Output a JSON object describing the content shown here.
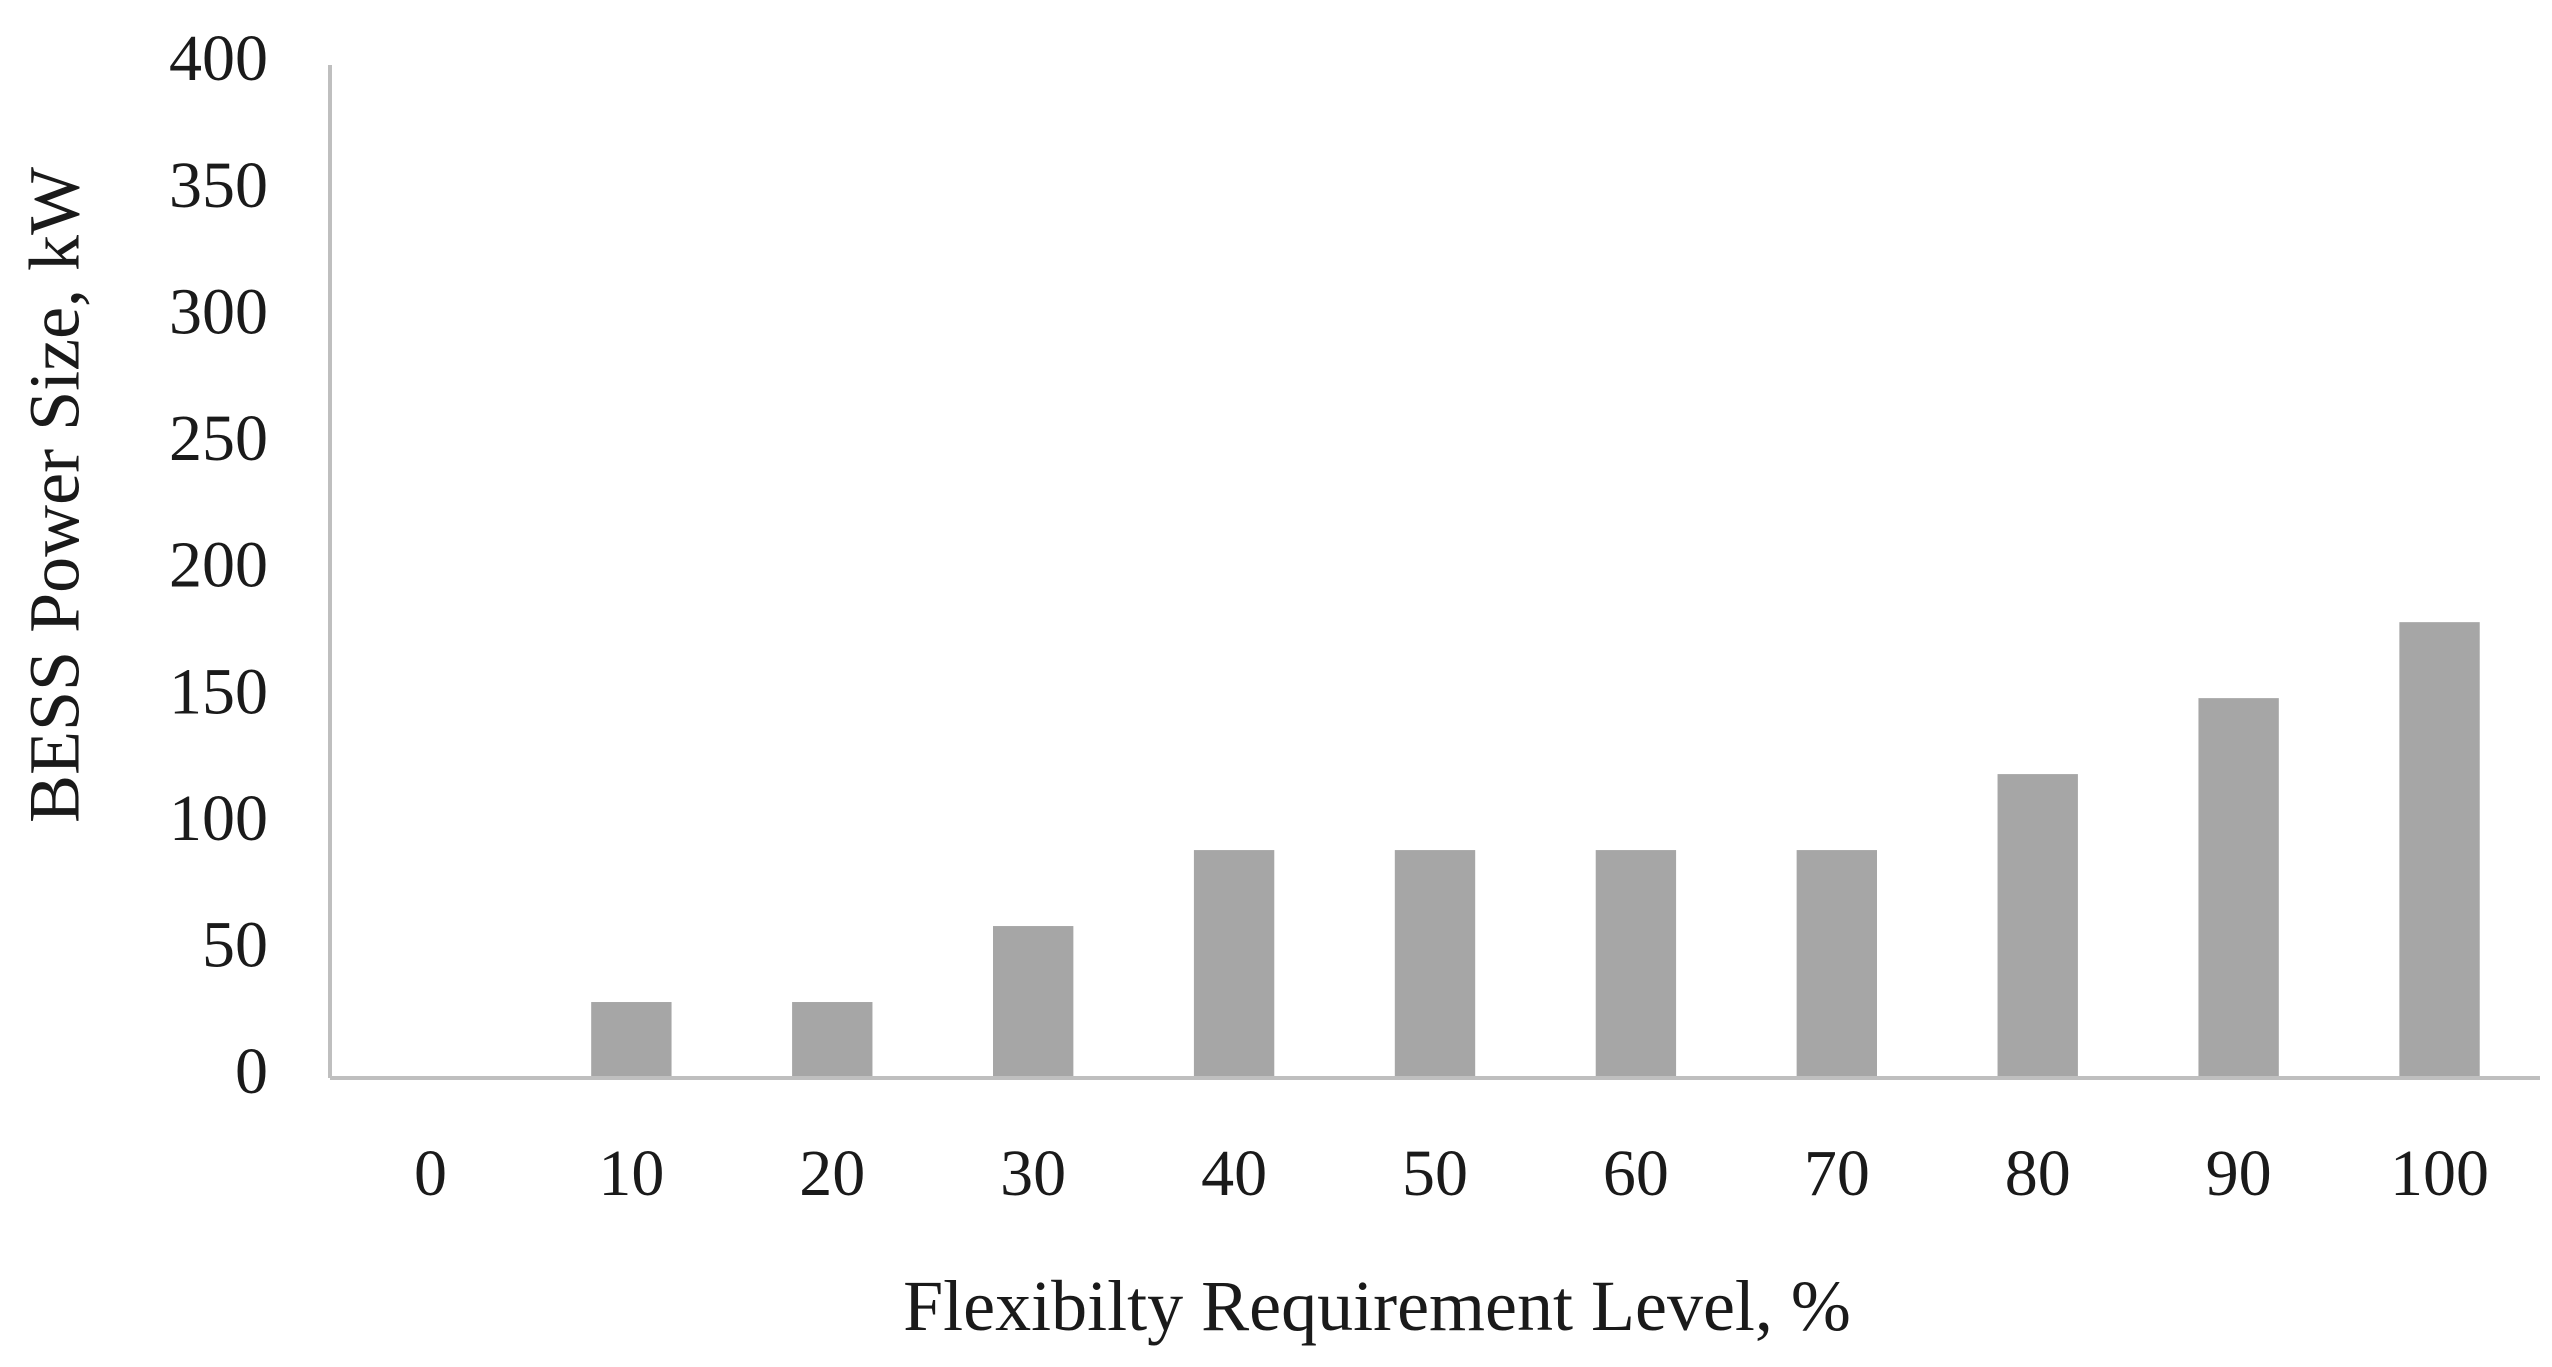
{
  "chart_data": {
    "type": "bar",
    "title": "",
    "xlabel": "Flexibilty Requirement Level, %",
    "ylabel": "BESS Power Size, kW",
    "categories": [
      "0",
      "10",
      "20",
      "30",
      "40",
      "50",
      "60",
      "70",
      "80",
      "90",
      "100"
    ],
    "values": [
      0,
      30,
      30,
      60,
      90,
      90,
      90,
      90,
      120,
      150,
      180
    ],
    "ylim": [
      0,
      400
    ],
    "yticks": [
      "0",
      "50",
      "100",
      "150",
      "200",
      "250",
      "300",
      "350",
      "400"
    ],
    "grid": false,
    "legend": "none",
    "bar_color": "#a6a6a6",
    "axis_color": "#bfbfbf"
  }
}
